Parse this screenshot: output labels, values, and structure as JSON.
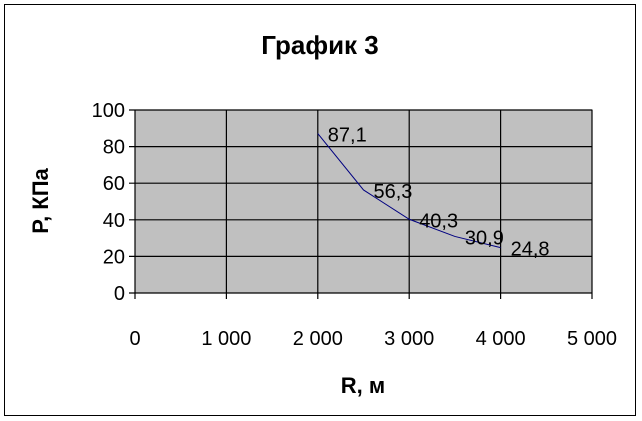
{
  "chart_data": {
    "type": "line",
    "title": "График 3",
    "xlabel": "R, м",
    "ylabel": "P, КПа",
    "xlim": [
      0,
      5000
    ],
    "ylim": [
      0,
      100
    ],
    "x_ticks": [
      "0",
      "1 000",
      "2 000",
      "3 000",
      "4 000",
      "5 000"
    ],
    "y_ticks": [
      "0",
      "20",
      "40",
      "60",
      "80",
      "100"
    ],
    "x_tick_values": [
      0,
      1000,
      2000,
      3000,
      4000,
      5000
    ],
    "y_tick_values": [
      0,
      20,
      40,
      60,
      80,
      100
    ],
    "grid": true,
    "legend": "none",
    "plot_background": "#C0C0C0",
    "series": [
      {
        "color": "#000080",
        "x": [
          2000,
          2500,
          3000,
          3500,
          4000
        ],
        "y": [
          87.1,
          56.3,
          40.3,
          30.9,
          24.8
        ],
        "labels": [
          "87,1",
          "56,3",
          "40,3",
          "30,9",
          "24,8"
        ]
      }
    ]
  }
}
